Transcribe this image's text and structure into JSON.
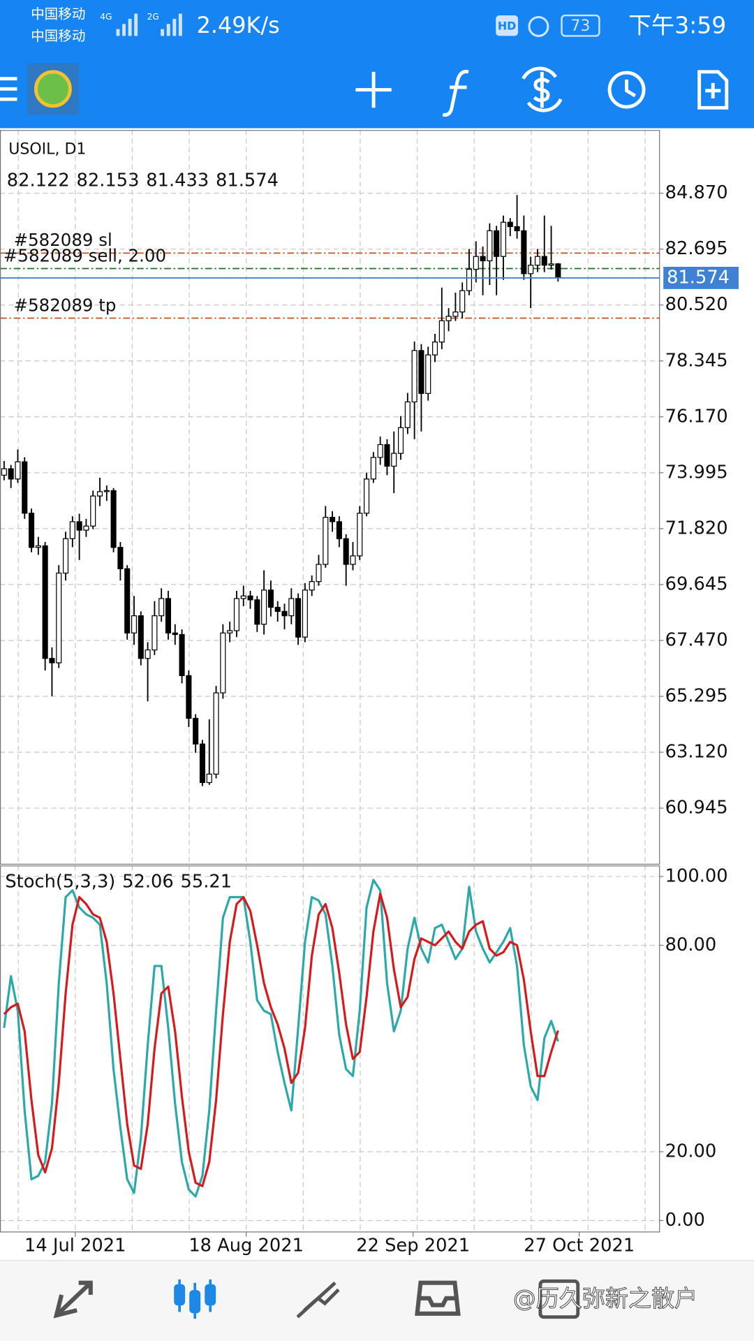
{
  "status_bar": {
    "carrier_1": "中国移动",
    "carrier_2": "中国移动",
    "net_1": "4G",
    "net_2": "2G",
    "speed": "2.49K/s",
    "hd": "HD",
    "battery": "73",
    "time": "下午3:59"
  },
  "watermark": "@历久弥新之散户",
  "chart_data": [
    {
      "type": "candlestick",
      "title": "USOIL, D1",
      "open": [
        73.9,
        74.15,
        73.75,
        74.42,
        72.42,
        71.09,
        71.15,
        66.77,
        66.6,
        70.09,
        71.43,
        72.09,
        71.76,
        71.92,
        73.09,
        73.26,
        73.3,
        71.09,
        70.26,
        67.76,
        68.43,
        66.77,
        67.1,
        68.43,
        69.1,
        67.76,
        67.7,
        66.1,
        64.44,
        63.44,
        61.94,
        62.27,
        65.43,
        67.76,
        67.85,
        69.1,
        69.2,
        69.05,
        68.1,
        69.43,
        68.76,
        68.6,
        68.43,
        69.1,
        67.6,
        69.43,
        69.76,
        70.43,
        72.26,
        72.09,
        71.43,
        70.43,
        70.76,
        72.42,
        73.75,
        74.59,
        75.09,
        74.25,
        74.75,
        75.75,
        76.75,
        78.75,
        77.08,
        78.58,
        79.08,
        79.91,
        80.08,
        80.25,
        81.08,
        81.91,
        82.41,
        82.24,
        83.41,
        82.41,
        83.74,
        83.57,
        83.41,
        81.74,
        82.07,
        82.41,
        82.07,
        82.122
      ],
      "high": [
        74.45,
        74.3,
        74.9,
        74.6,
        72.6,
        71.5,
        71.3,
        67.2,
        70.4,
        71.7,
        72.3,
        72.4,
        72.2,
        73.3,
        73.8,
        73.5,
        73.4,
        71.3,
        70.4,
        69.2,
        68.6,
        67.4,
        69.0,
        69.5,
        69.4,
        68.1,
        67.9,
        66.3,
        64.6,
        63.6,
        64.4,
        65.7,
        68.1,
        68.2,
        69.4,
        69.6,
        69.4,
        69.2,
        70.2,
        69.8,
        69.0,
        68.9,
        69.5,
        69.3,
        69.7,
        70.0,
        70.8,
        72.7,
        72.5,
        72.3,
        71.6,
        71.3,
        72.7,
        74.0,
        74.8,
        75.4,
        75.3,
        75.6,
        76.2,
        77.1,
        79.1,
        79.0,
        78.9,
        79.4,
        81.2,
        80.4,
        81.0,
        81.4,
        82.7,
        83.0,
        82.8,
        83.7,
        83.6,
        84.0,
        83.9,
        84.8,
        84.0,
        82.4,
        82.7,
        84.0,
        83.6,
        82.153
      ],
      "low": [
        73.7,
        73.4,
        73.6,
        72.2,
        70.9,
        70.8,
        66.3,
        65.3,
        66.4,
        69.8,
        71.1,
        70.6,
        71.5,
        71.8,
        72.7,
        72.9,
        70.9,
        69.8,
        67.5,
        67.3,
        66.5,
        65.1,
        66.9,
        68.2,
        67.5,
        67.3,
        65.8,
        64.1,
        63.1,
        61.8,
        61.85,
        62.1,
        65.2,
        67.4,
        67.6,
        68.8,
        68.7,
        67.8,
        67.7,
        68.4,
        68.2,
        67.9,
        68.1,
        67.3,
        67.4,
        69.2,
        69.6,
        70.3,
        71.7,
        71.1,
        69.6,
        70.2,
        70.6,
        72.3,
        73.6,
        74.3,
        73.9,
        73.2,
        74.5,
        75.5,
        75.3,
        75.6,
        76.8,
        78.3,
        78.8,
        79.5,
        79.9,
        80.0,
        80.9,
        81.4,
        80.9,
        81.3,
        80.9,
        81.5,
        83.2,
        83.1,
        81.5,
        80.4,
        81.8,
        81.8,
        81.9,
        81.433
      ],
      "close": [
        74.15,
        73.75,
        74.42,
        72.42,
        71.09,
        71.15,
        66.77,
        66.6,
        70.09,
        71.43,
        72.09,
        71.76,
        71.92,
        73.09,
        73.26,
        73.3,
        71.09,
        70.26,
        67.76,
        68.43,
        66.77,
        67.1,
        68.43,
        69.1,
        67.76,
        67.7,
        66.1,
        64.44,
        63.44,
        61.94,
        62.27,
        65.43,
        67.76,
        67.85,
        69.1,
        69.2,
        69.05,
        68.1,
        69.43,
        68.76,
        68.6,
        68.43,
        69.1,
        67.6,
        69.43,
        69.76,
        70.43,
        72.26,
        72.09,
        71.43,
        70.43,
        70.76,
        72.42,
        73.75,
        74.59,
        75.09,
        74.25,
        74.75,
        75.75,
        76.75,
        78.75,
        77.08,
        78.58,
        79.08,
        79.91,
        80.08,
        80.25,
        81.08,
        81.91,
        82.41,
        82.24,
        83.41,
        82.41,
        83.74,
        83.57,
        83.41,
        81.74,
        82.07,
        82.41,
        82.07,
        82.12,
        81.574
      ],
      "up_color": "#ffffff",
      "down_color": "#000000",
      "outline_color": "#000000",
      "bid_color": "#3f82d4",
      "orders": [
        {
          "label": "#582089 sl",
          "price": 82.54,
          "color": "#c8501e"
        },
        {
          "label": "#582089 sell, 2.00",
          "price": 81.94,
          "color": "#1e6e1e"
        },
        {
          "label": "#582089 tp",
          "price": 80.01,
          "color": "#c8501e"
        }
      ],
      "xlim": [
        -0.6,
        95.9
      ],
      "xticks": [
        {
          "value": 10.4,
          "label": "14 Jul 2021"
        },
        {
          "value": 35.4,
          "label": "18 Aug 2021"
        },
        {
          "value": 59.8,
          "label": "22 Sep 2021"
        },
        {
          "value": 84.1,
          "label": "27 Oct 2021"
        }
      ],
      "ylim": [
        58.78,
        87.33
      ],
      "yticks": [
        {
          "value": 84.87,
          "label": "84.870"
        },
        82.695,
        {
          "value": 80.52,
          "label": "80.520"
        },
        78.345,
        {
          "value": 76.17,
          "label": "76.170"
        },
        73.995,
        {
          "value": 71.82,
          "label": "71.820"
        },
        69.645,
        {
          "value": 67.47,
          "label": "67.470"
        },
        65.295,
        {
          "value": 63.12,
          "label": "63.120"
        },
        60.945
      ],
      "grid": true
    },
    {
      "type": "line",
      "title": "Stoch(5,3,3)",
      "series": [
        {
          "color": "#2aa9a6",
          "values": [
            56,
            71,
            61,
            32,
            12,
            13,
            17,
            34,
            69,
            94,
            96,
            91,
            89,
            88,
            86,
            69,
            44,
            27,
            12,
            8,
            24,
            51,
            74,
            74,
            56,
            34,
            17,
            9,
            7,
            13,
            32,
            61,
            88,
            94,
            94,
            94,
            81,
            64,
            61,
            60,
            49,
            40,
            32,
            56,
            81,
            94,
            93,
            89,
            74,
            54,
            44,
            42,
            61,
            91,
            99,
            96,
            69,
            55,
            61,
            79,
            88,
            79,
            75,
            85,
            86,
            81,
            76,
            79,
            97,
            84,
            79,
            75,
            78,
            81,
            85,
            74,
            51,
            39,
            35,
            53,
            58,
            52.06
          ]
        },
        {
          "color": "#d7191c",
          "values": [
            60,
            62,
            63,
            55,
            35,
            19,
            14,
            21,
            40,
            66,
            86,
            94,
            92,
            89,
            88,
            81,
            66,
            47,
            28,
            16,
            15,
            28,
            50,
            66,
            68,
            55,
            36,
            20,
            11,
            10,
            17,
            35,
            60,
            81,
            92,
            94,
            90,
            80,
            69,
            62,
            57,
            50,
            40,
            43,
            56,
            77,
            89,
            92,
            85,
            72,
            57,
            47,
            49,
            65,
            84,
            95,
            88,
            73,
            62,
            65,
            76,
            82,
            81,
            80,
            82,
            84,
            81,
            79,
            84,
            86,
            87,
            79,
            77,
            78,
            81,
            80,
            70,
            55,
            42,
            42,
            49,
            55.21
          ]
        }
      ],
      "ylim": [
        -3.2,
        103.2
      ],
      "yticks": [
        {
          "value": 100,
          "label": "100.00"
        },
        {
          "value": 80,
          "label": "80.00"
        },
        {
          "value": 20,
          "label": "20.00"
        },
        {
          "value": 0,
          "label": "0.00"
        }
      ],
      "grid": true
    }
  ]
}
